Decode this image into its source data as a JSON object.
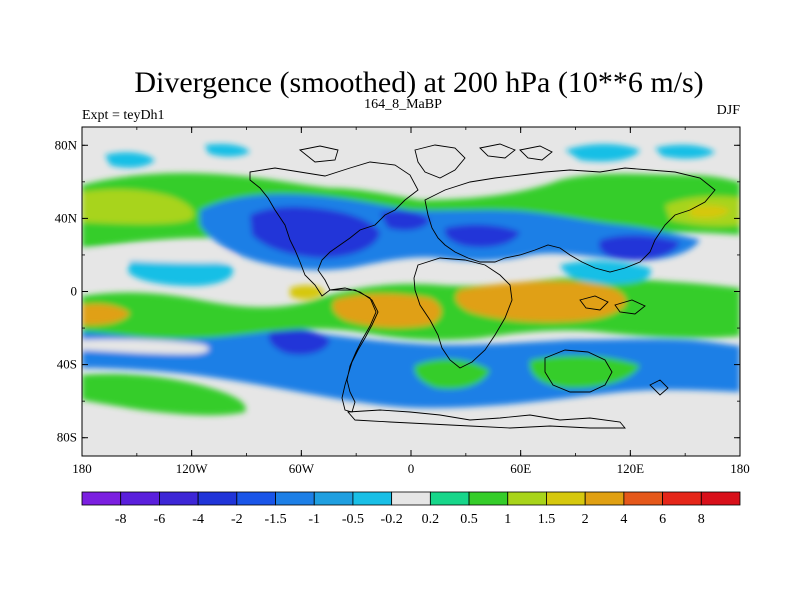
{
  "chart_data": {
    "type": "heatmap",
    "title": "Divergence (smoothed) at 200 hPa (10**6 m/s)",
    "left_string": "Expt = teyDh1",
    "center_string": "164_8_MaBP",
    "right_string": "DJF",
    "x_range": [
      -180,
      180
    ],
    "y_range": [
      -90,
      90
    ],
    "x_ticks": [
      {
        "value": -180,
        "label": "180"
      },
      {
        "value": -120,
        "label": "120W"
      },
      {
        "value": -60,
        "label": "60W"
      },
      {
        "value": 0,
        "label": "0"
      },
      {
        "value": 60,
        "label": "60E"
      },
      {
        "value": 120,
        "label": "120E"
      },
      {
        "value": 180,
        "label": "180"
      }
    ],
    "y_ticks": [
      {
        "value": 80,
        "label": "80N"
      },
      {
        "value": 40,
        "label": "40N"
      },
      {
        "value": 0,
        "label": "0"
      },
      {
        "value": -40,
        "label": "40S"
      },
      {
        "value": -80,
        "label": "80S"
      }
    ],
    "levels": [
      "-8",
      "-6",
      "-4",
      "-2",
      "-1.5",
      "-1",
      "-0.5",
      "-0.2",
      "0.2",
      "0.5",
      "1",
      "1.5",
      "2",
      "4",
      "6",
      "8"
    ],
    "colors": [
      "#7b1fe0",
      "#5a1fdc",
      "#3d26d6",
      "#2034d8",
      "#1a55e8",
      "#1d7fe6",
      "#1f9fe0",
      "#19bfe6",
      "#e6e6e6",
      "#17d68a",
      "#35cd2a",
      "#a8d41a",
      "#d6c80e",
      "#e0a012",
      "#e5581a",
      "#e52619",
      "#d8101a"
    ],
    "features": [
      {
        "name": "na-pacific-green-band",
        "lon": -140,
        "lat": 42,
        "value": 1.2
      },
      {
        "name": "n-atlantic-blue",
        "lon": -50,
        "lat": 30,
        "value": -3.0
      },
      {
        "name": "asia-blue",
        "lon": 90,
        "lat": 33,
        "value": -1.2
      },
      {
        "name": "africa-indian-orange",
        "lon": 80,
        "lat": -10,
        "value": 3.0
      },
      {
        "name": "south-atlantic-orange",
        "lon": -20,
        "lat": -12,
        "value": 2.5
      },
      {
        "name": "east-pacific-orange",
        "lon": -175,
        "lat": -15,
        "value": 1.8
      },
      {
        "name": "se-pacific-blue",
        "lon": -100,
        "lat": -35,
        "value": -1.5
      },
      {
        "name": "southern-ocean-green",
        "lon": -150,
        "lat": -60,
        "value": 0.8
      }
    ]
  }
}
